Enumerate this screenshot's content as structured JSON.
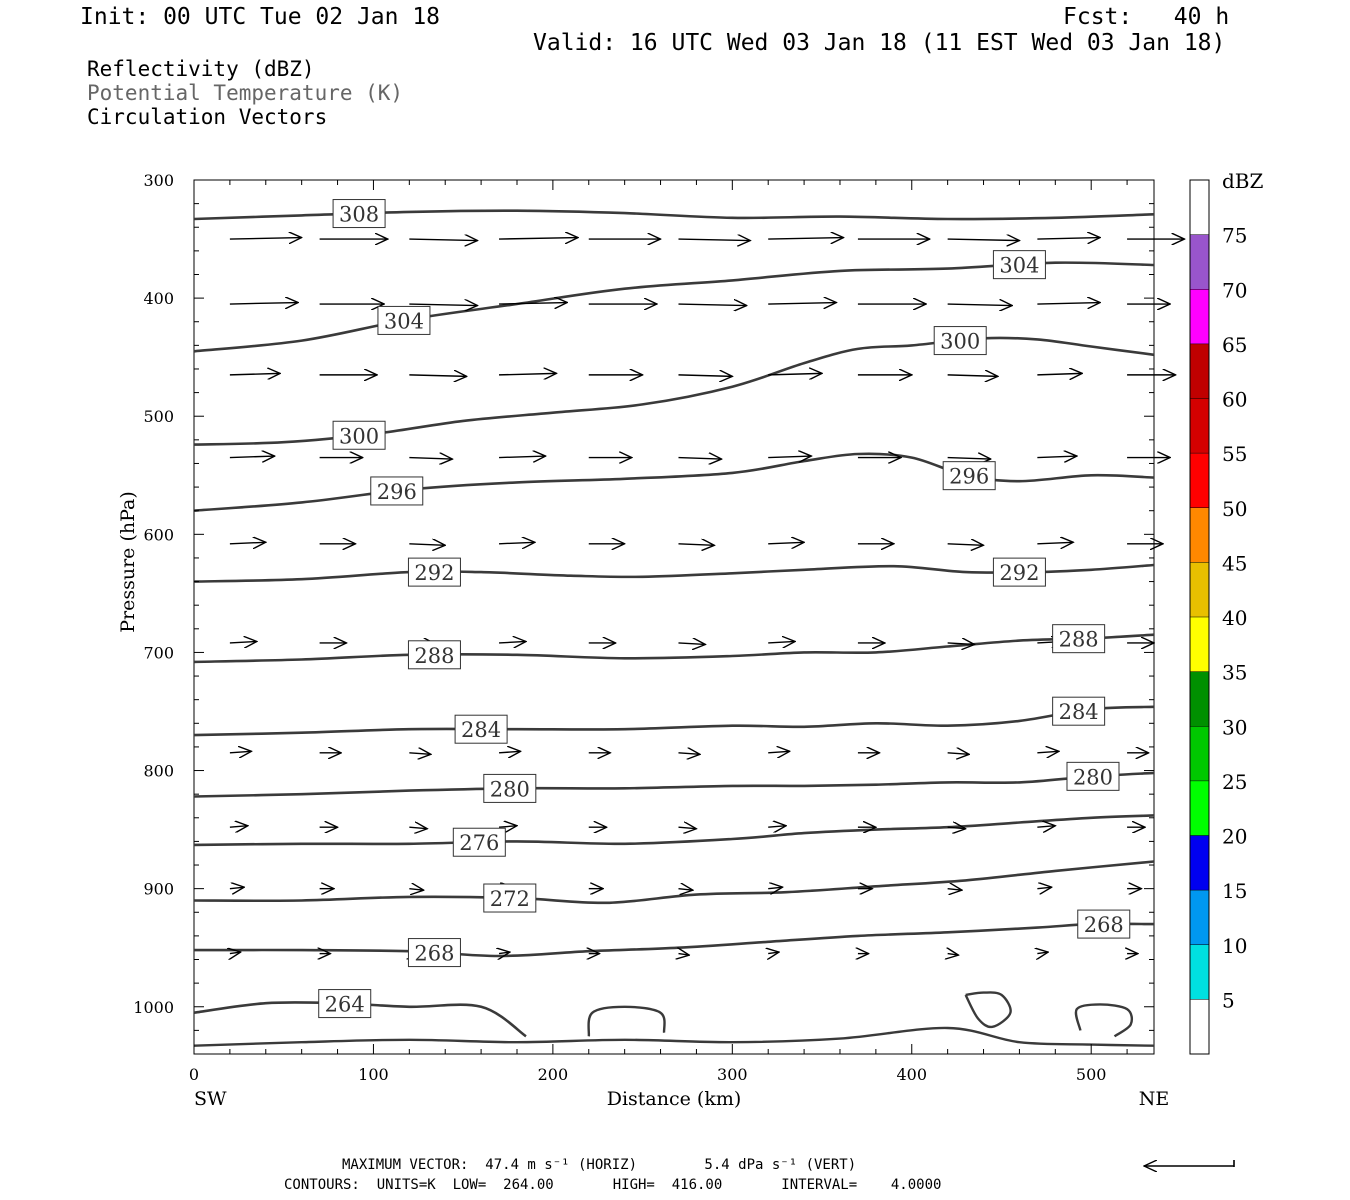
{
  "header": {
    "init": "Init: 00 UTC Tue 02 Jan 18",
    "fcst": "Fcst:   40 h",
    "valid": "Valid: 16 UTC Wed 03 Jan 18 (11 EST Wed 03 Jan 18)"
  },
  "legend": {
    "line1": "Reflectivity (dBZ)",
    "line2": "Potential Temperature (K)",
    "line3": "Circulation Vectors",
    "line2_color": "#666666"
  },
  "footer": {
    "max_vector": "MAXIMUM VECTOR:  47.4 m s⁻¹ (HORIZ)        5.4 dPa s⁻¹ (VERT)",
    "contours": "CONTOURS:  UNITS=K  LOW=  264.00       HIGH=  416.00       INTERVAL=    4.0000"
  },
  "chart_data": {
    "type": "contour",
    "xlabel": "Distance (km)",
    "ylabel": "Pressure (hPa)",
    "xlim": [
      0,
      535
    ],
    "ylim": [
      1040,
      300
    ],
    "x_ticks": [
      0,
      100,
      200,
      300,
      400,
      500
    ],
    "y_ticks": [
      300,
      400,
      500,
      600,
      700,
      800,
      900,
      1000
    ],
    "x_left_label": "SW",
    "x_right_label": "NE",
    "contour_color": "#3a3a3a",
    "isentropes": [
      {
        "value": 308,
        "x": [
          0,
          60,
          120,
          180,
          240,
          300,
          360,
          420,
          480,
          535
        ],
        "p": [
          333,
          330,
          327,
          326,
          328,
          332,
          331,
          333,
          332,
          329
        ],
        "labels": [
          {
            "text": "308",
            "x": 92
          }
        ]
      },
      {
        "value": 304,
        "x": [
          0,
          60,
          120,
          180,
          240,
          300,
          360,
          420,
          480,
          535
        ],
        "p": [
          445,
          436,
          418,
          405,
          392,
          385,
          377,
          375,
          370,
          372
        ],
        "labels": [
          {
            "text": "304",
            "x": 117
          },
          {
            "text": "304",
            "x": 460
          }
        ]
      },
      {
        "value": 300,
        "x": [
          0,
          50,
          100,
          150,
          200,
          250,
          300,
          340,
          370,
          400,
          440,
          470,
          500,
          535
        ],
        "p": [
          524,
          522,
          515,
          504,
          497,
          490,
          475,
          455,
          443,
          440,
          434,
          435,
          441,
          448
        ],
        "labels": [
          {
            "text": "300",
            "x": 92
          },
          {
            "text": "300",
            "x": 427
          }
        ]
      },
      {
        "value": 296,
        "x": [
          0,
          60,
          120,
          180,
          240,
          300,
          340,
          370,
          400,
          430,
          460,
          500,
          535
        ],
        "p": [
          580,
          573,
          562,
          556,
          553,
          548,
          538,
          532,
          535,
          550,
          555,
          550,
          552
        ],
        "labels": [
          {
            "text": "296",
            "x": 113
          },
          {
            "text": "296",
            "x": 432
          }
        ]
      },
      {
        "value": 292,
        "x": [
          0,
          60,
          120,
          160,
          210,
          250,
          300,
          340,
          390,
          430,
          470,
          500,
          535
        ],
        "p": [
          640,
          638,
          632,
          632,
          635,
          636,
          633,
          630,
          627,
          632,
          632,
          630,
          626
        ],
        "labels": [
          {
            "text": "292",
            "x": 134
          },
          {
            "text": "292",
            "x": 460
          }
        ]
      },
      {
        "value": 288,
        "x": [
          0,
          60,
          120,
          180,
          240,
          300,
          340,
          380,
          420,
          460,
          500,
          535
        ],
        "p": [
          708,
          706,
          702,
          702,
          705,
          703,
          700,
          700,
          695,
          690,
          688,
          685
        ],
        "labels": [
          {
            "text": "288",
            "x": 134
          },
          {
            "text": "288",
            "x": 493
          }
        ]
      },
      {
        "value": 284,
        "x": [
          0,
          60,
          120,
          180,
          240,
          300,
          340,
          380,
          420,
          460,
          500,
          535
        ],
        "p": [
          770,
          768,
          765,
          765,
          765,
          762,
          763,
          760,
          762,
          758,
          748,
          746
        ],
        "labels": [
          {
            "text": "284",
            "x": 160
          },
          {
            "text": "284",
            "x": 493
          }
        ]
      },
      {
        "value": 280,
        "x": [
          0,
          60,
          120,
          180,
          240,
          300,
          340,
          380,
          420,
          460,
          500,
          535
        ],
        "p": [
          822,
          820,
          817,
          815,
          815,
          813,
          813,
          812,
          810,
          810,
          805,
          802
        ],
        "labels": [
          {
            "text": "280",
            "x": 176
          },
          {
            "text": "280",
            "x": 501
          }
        ]
      },
      {
        "value": 276,
        "x": [
          0,
          60,
          120,
          180,
          240,
          300,
          340,
          380,
          420,
          460,
          500,
          535
        ],
        "p": [
          863,
          862,
          862,
          860,
          862,
          858,
          853,
          850,
          848,
          844,
          840,
          838
        ],
        "labels": [
          {
            "text": "276",
            "x": 159
          }
        ]
      },
      {
        "value": 272,
        "x": [
          0,
          60,
          120,
          180,
          230,
          280,
          330,
          380,
          430,
          480,
          535
        ],
        "p": [
          910,
          910,
          907,
          908,
          912,
          905,
          903,
          898,
          893,
          885,
          877
        ],
        "labels": [
          {
            "text": "272",
            "x": 176
          }
        ]
      },
      {
        "value": 268,
        "x": [
          0,
          60,
          120,
          170,
          220,
          270,
          320,
          370,
          420,
          470,
          500,
          535
        ],
        "p": [
          952,
          952,
          953,
          957,
          953,
          950,
          945,
          940,
          937,
          933,
          930,
          930
        ],
        "labels": [
          {
            "text": "268",
            "x": 134
          },
          {
            "text": "268",
            "x": 507
          }
        ]
      },
      {
        "value": 264,
        "x": [
          0,
          40,
          80,
          120,
          160,
          185
        ],
        "p": [
          1005,
          997,
          997,
          1000,
          1000,
          1025
        ],
        "labels": [
          {
            "text": "264",
            "x": 84
          }
        ]
      }
    ],
    "vectors": {
      "pressure_rows": [
        350,
        405,
        465,
        535,
        608,
        692,
        785,
        848,
        900,
        955
      ],
      "x_positions": [
        20,
        70,
        120,
        170,
        220,
        270,
        320,
        370,
        420,
        470,
        520
      ],
      "u_kmpx": [
        [
          40,
          38,
          38,
          44,
          40,
          40,
          42,
          40,
          40,
          35,
          32
        ],
        [
          38,
          36,
          38,
          38,
          38,
          38,
          38,
          38,
          36,
          35,
          24
        ],
        [
          28,
          32,
          32,
          32,
          30,
          30,
          30,
          30,
          28,
          25,
          27
        ],
        [
          25,
          24,
          24,
          26,
          24,
          24,
          24,
          24,
          24,
          22,
          24
        ],
        [
          20,
          20,
          20,
          20,
          20,
          20,
          20,
          20,
          20,
          20,
          20
        ],
        [
          15,
          15,
          15,
          15,
          15,
          15,
          15,
          15,
          15,
          15,
          15
        ],
        [
          12,
          12,
          12,
          12,
          12,
          12,
          12,
          12,
          12,
          12,
          12
        ],
        [
          10,
          10,
          10,
          10,
          10,
          10,
          10,
          10,
          10,
          10,
          10
        ],
        [
          8,
          8,
          8,
          8,
          8,
          8,
          8,
          8,
          8,
          8,
          8
        ],
        [
          6,
          6,
          6,
          6,
          6,
          6,
          6,
          6,
          6,
          6,
          6
        ]
      ]
    },
    "colorbar": {
      "unit": "dBZ",
      "levels": [
        5,
        10,
        15,
        20,
        25,
        30,
        35,
        40,
        45,
        50,
        55,
        60,
        65,
        70,
        75
      ],
      "colors": [
        "#ffffff",
        "#00e0e0",
        "#0098f0",
        "#0000f0",
        "#00ff00",
        "#00c800",
        "#009000",
        "#ffff00",
        "#e8c000",
        "#ff8800",
        "#ff0000",
        "#d40000",
        "#c00000",
        "#ff00ff",
        "#9955cc",
        "#ffffff"
      ]
    },
    "max_vector_arrow": {
      "direction": "left"
    }
  }
}
